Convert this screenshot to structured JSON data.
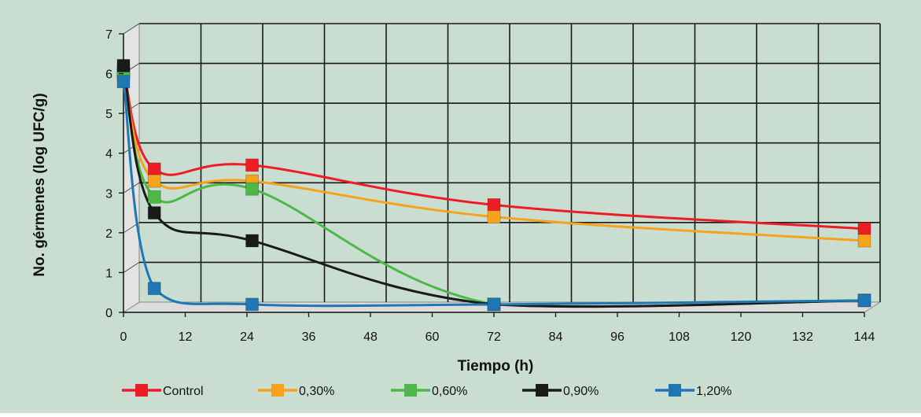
{
  "chart_data": {
    "type": "line",
    "xlabel": "Tiempo (h)",
    "ylabel": "No. gérmenes (log UFC/g)",
    "xlim": [
      0,
      144
    ],
    "ylim": [
      0,
      7
    ],
    "x_ticks": [
      0,
      12,
      24,
      36,
      48,
      60,
      72,
      84,
      96,
      108,
      120,
      132,
      144
    ],
    "y_ticks": [
      0,
      1,
      2,
      3,
      4,
      5,
      6,
      7
    ],
    "grid": true,
    "legend_position": "bottom",
    "x": [
      0,
      6,
      25,
      72,
      144
    ],
    "series": [
      {
        "name": "Control",
        "color": "#ee1c25",
        "values": [
          6.1,
          3.6,
          3.7,
          2.7,
          2.1
        ]
      },
      {
        "name": "0,30%",
        "color": "#f7a21b",
        "values": [
          6.0,
          3.3,
          3.3,
          2.4,
          1.8
        ]
      },
      {
        "name": "0,60%",
        "color": "#4cb848",
        "values": [
          6.0,
          2.9,
          3.1,
          0.2,
          0.3
        ]
      },
      {
        "name": "0,90%",
        "color": "#1a1a1a",
        "values": [
          6.2,
          2.5,
          1.8,
          0.2,
          0.3
        ]
      },
      {
        "name": "1,20%",
        "color": "#1f77b4",
        "values": [
          5.8,
          0.6,
          0.2,
          0.2,
          0.3
        ]
      }
    ],
    "colors": {
      "background": "#c9ddd0",
      "wall_left": "#e3e3e3",
      "floor": "#dcdcdc",
      "grid": "#1a1a1a"
    }
  }
}
